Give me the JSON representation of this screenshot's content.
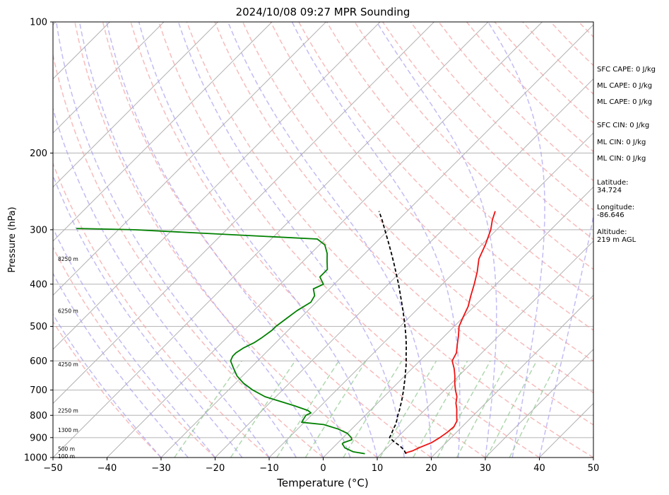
{
  "chart_data": {
    "type": "line",
    "title": "2024/10/08 09:27 MPR Sounding",
    "xlabel": "Temperature (°C)",
    "ylabel": "Pressure (hPa)",
    "xlim": [
      -50,
      50
    ],
    "ylim": [
      1000,
      100
    ],
    "yscale": "log",
    "skew": true,
    "grid": true,
    "x_ticks": [
      "−50",
      "−40",
      "−30",
      "−20",
      "−10",
      "0",
      "10",
      "20",
      "30",
      "40",
      "50"
    ],
    "y_ticks": [
      "1000",
      "900",
      "800",
      "700",
      "600",
      "500",
      "400",
      "300",
      "200",
      "100"
    ],
    "series": [
      {
        "color": "#ee1111",
        "pressure": [
          980,
          975,
          965,
          950,
          925,
          900,
          875,
          850,
          825,
          800,
          775,
          750,
          725,
          700,
          675,
          650,
          625,
          600,
          575,
          550,
          525,
          500,
          475,
          450,
          425,
          400,
          375,
          350,
          325,
          300,
          285,
          272
        ],
        "temperature": [
          14.6,
          14.5,
          15.3,
          15.9,
          17.3,
          17.9,
          18.3,
          18.5,
          18.0,
          16.9,
          15.8,
          14.5,
          13.5,
          12.0,
          10.6,
          9.3,
          7.8,
          6.0,
          5.3,
          3.9,
          2.5,
          0.9,
          -0.1,
          -1.1,
          -2.6,
          -4.1,
          -5.8,
          -7.9,
          -9.3,
          -11.1,
          -12.6,
          -13.7
        ]
      },
      {
        "color": "#008000",
        "pressure": [
          980,
          970,
          950,
          930,
          925,
          910,
          900,
          880,
          860,
          840,
          830,
          800,
          790,
          780,
          760,
          740,
          725,
          700,
          675,
          650,
          625,
          600,
          585,
          575,
          560,
          545,
          530,
          510,
          500,
          480,
          460,
          440,
          425,
          410,
          400,
          385,
          370,
          355,
          340,
          325,
          315,
          300,
          298
        ],
        "temperature": [
          7.0,
          4.5,
          2.2,
          1.0,
          1.0,
          2.0,
          1.5,
          0.0,
          -2.5,
          -6.0,
          -10.5,
          -11.0,
          -10.5,
          -11.5,
          -15.0,
          -19.0,
          -22.0,
          -25.5,
          -28.5,
          -31.0,
          -33.0,
          -35.0,
          -35.5,
          -35.5,
          -35.0,
          -34.0,
          -33.5,
          -33.0,
          -33.0,
          -32.5,
          -32.0,
          -31.0,
          -31.5,
          -33.0,
          -32.0,
          -34.0,
          -34.0,
          -35.5,
          -37.0,
          -39.0,
          -41.5,
          -77.0,
          -88.0
        ]
      },
      {
        "color": "#000000",
        "style": "dashed",
        "pressure": [
          980,
          960,
          940,
          920,
          900,
          880,
          860,
          840,
          820,
          800,
          780,
          760,
          740,
          720,
          700,
          680,
          660,
          640,
          620,
          600,
          580,
          560,
          540,
          520,
          500,
          480,
          460,
          440,
          420,
          400,
          380,
          360,
          340,
          320,
          300,
          285,
          272
        ],
        "temperature": [
          14.6,
          13.5,
          12.0,
          10.2,
          8.6,
          8.2,
          7.7,
          7.3,
          6.7,
          6.0,
          5.4,
          4.7,
          4.0,
          3.2,
          2.4,
          1.5,
          0.6,
          -0.4,
          -1.4,
          -2.5,
          -3.7,
          -4.9,
          -6.2,
          -7.6,
          -9.1,
          -10.7,
          -12.4,
          -14.2,
          -16.1,
          -18.1,
          -20.3,
          -22.6,
          -25.1,
          -27.8,
          -30.7,
          -33.0,
          -35.2
        ]
      }
    ],
    "height_labels": [
      {
        "pressure": 993,
        "text": "100 m"
      },
      {
        "pressure": 955,
        "text": "500 m"
      },
      {
        "pressure": 865,
        "text": "1300 m"
      },
      {
        "pressure": 780,
        "text": "2250 m"
      },
      {
        "pressure": 610,
        "text": "4250 m"
      },
      {
        "pressure": 460,
        "text": "6250 m"
      },
      {
        "pressure": 350,
        "text": "8250 m"
      }
    ],
    "side_info": [
      "SFC CAPE: 0 J/kg",
      "ML CAPE: 0 J/kg",
      "ML CAPE: 0 J/kg",
      "SFC CIN: 0 J/kg",
      "ML CIN: 0 J/kg",
      "ML CIN: 0 J/kg",
      "Latitude:\n34.724",
      "Longitude:\n-86.646",
      "Altitude:\n219 m AGL"
    ],
    "colors": {
      "isotherm": "#b3b3b3",
      "isobar": "#b3b3b3",
      "dry_adiabat": "#f4a0a0",
      "moist_adiabat": "#a8a0f0",
      "mixing_ratio": "#8fc88f"
    }
  }
}
